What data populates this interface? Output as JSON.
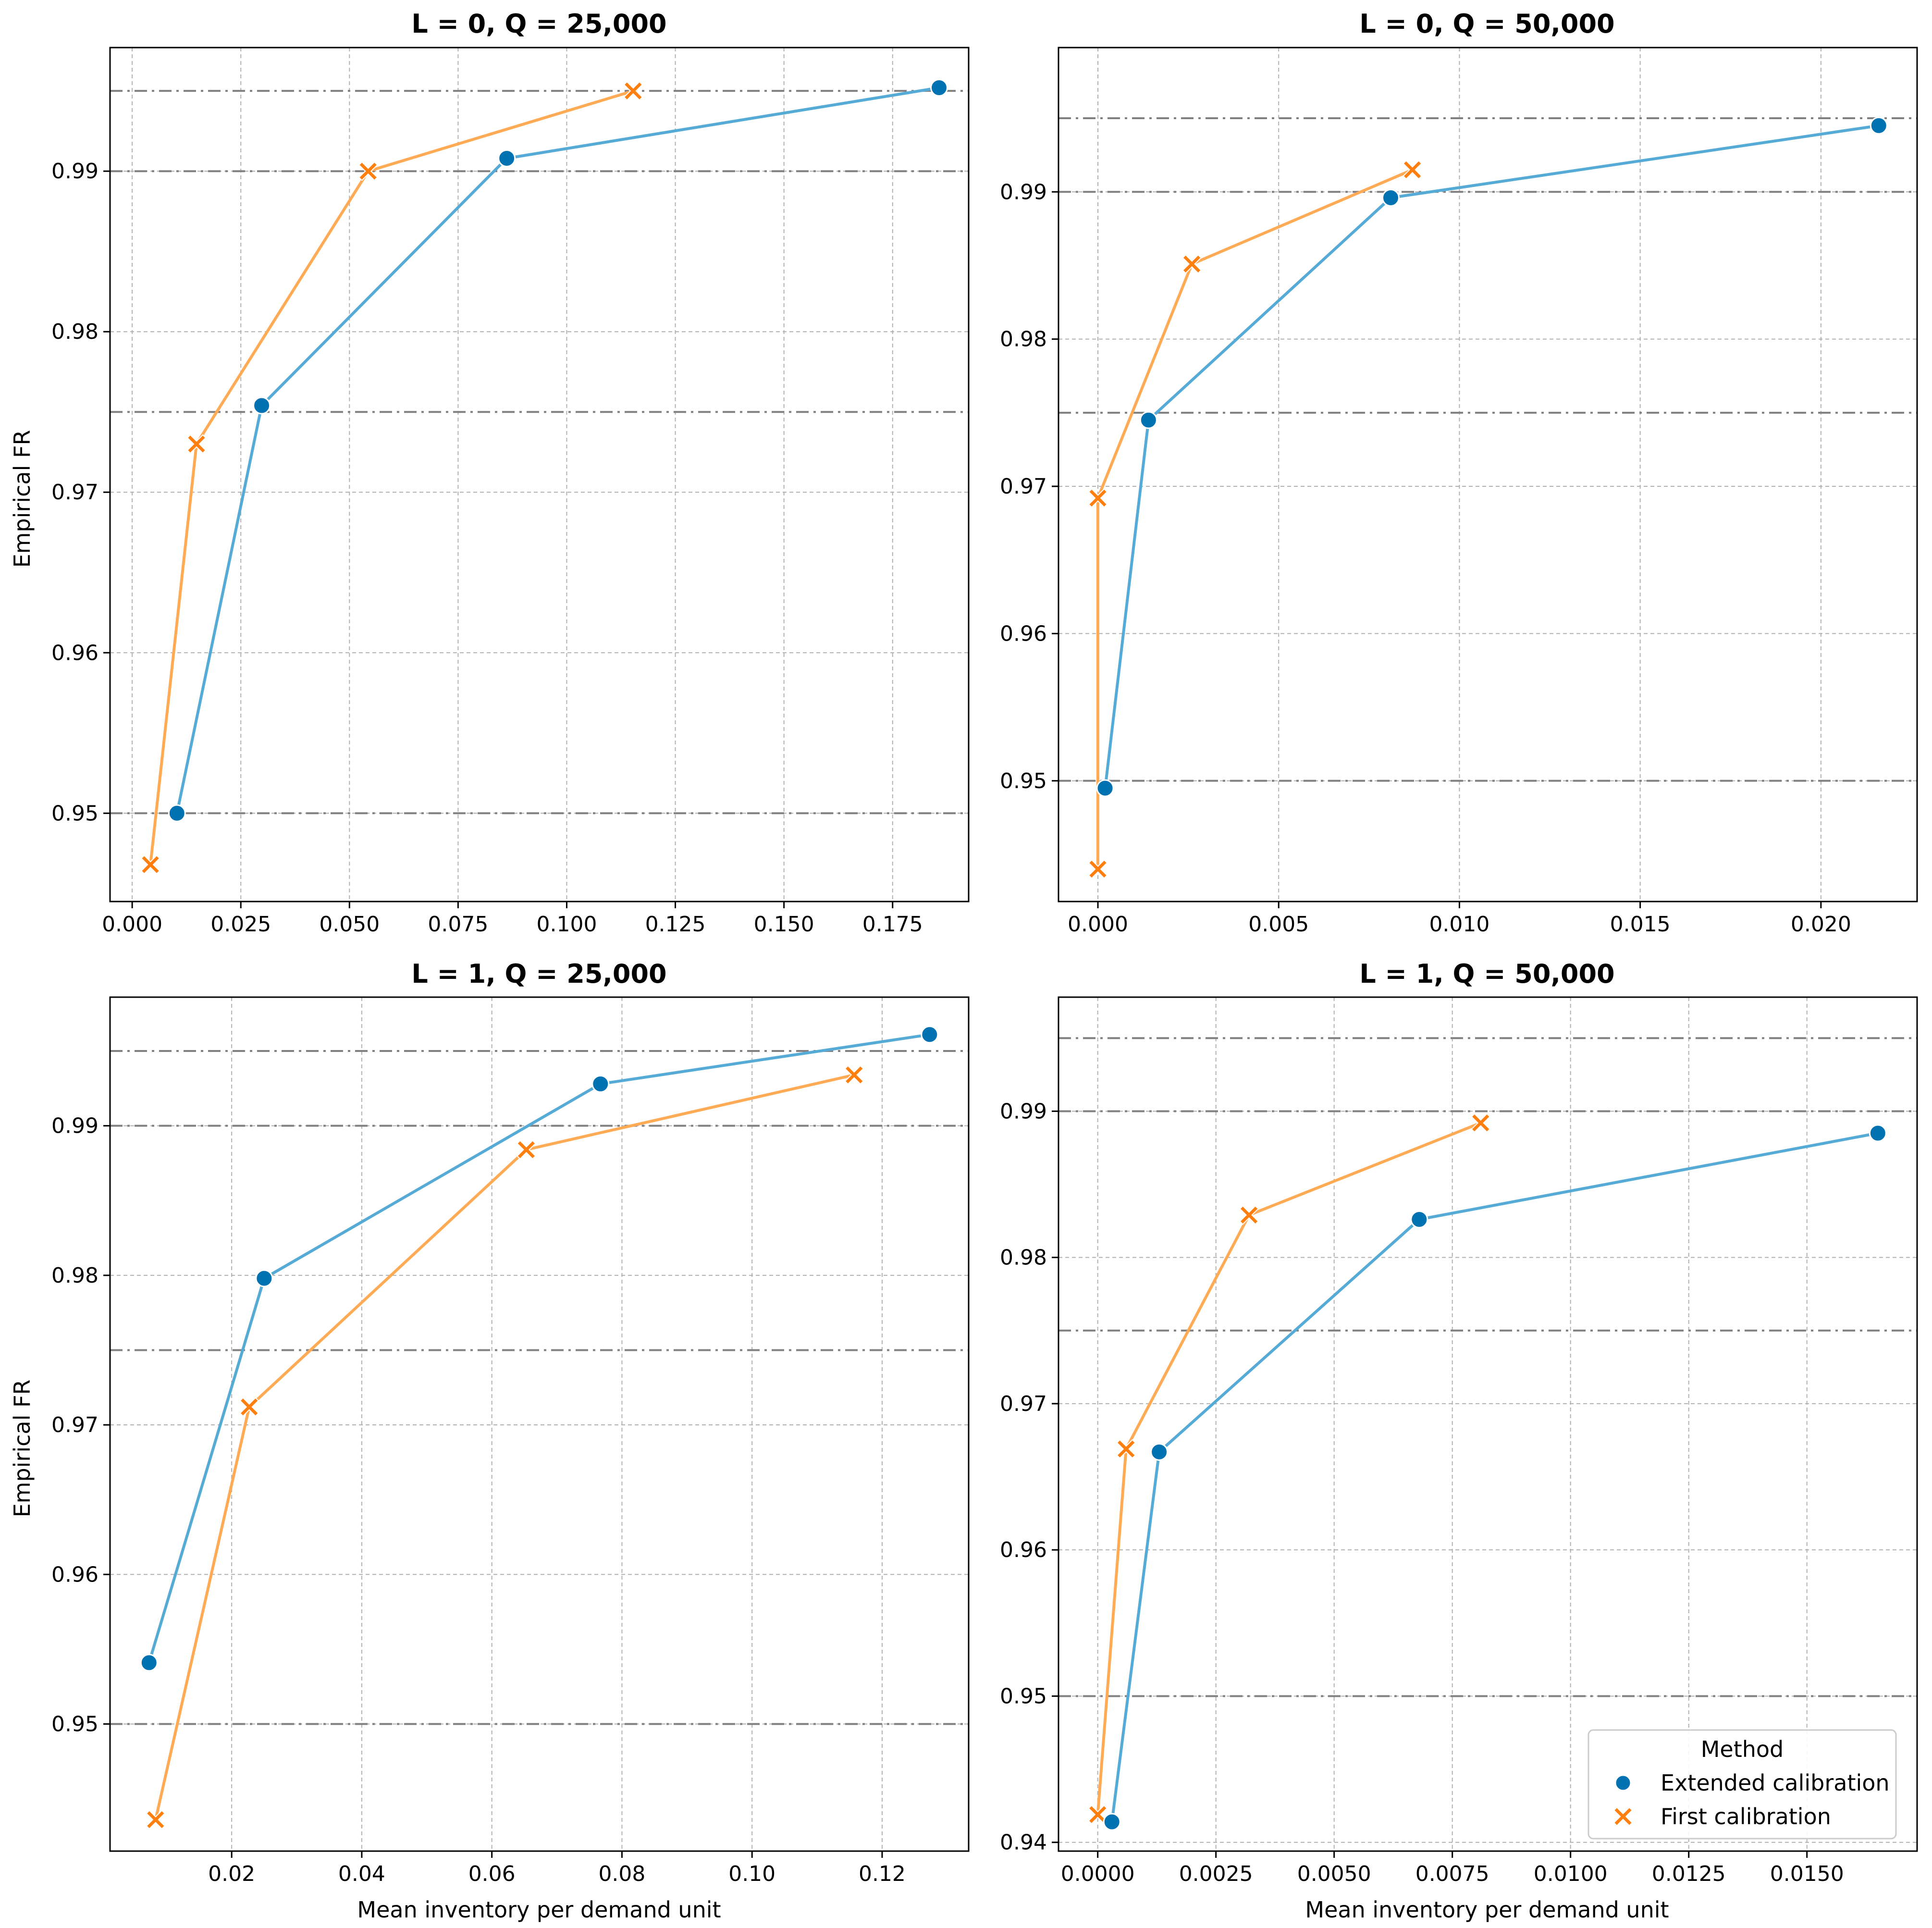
{
  "figure": {
    "legend": {
      "title": "Method",
      "entries": [
        {
          "label": "Extended calibration",
          "color": "#0072B2",
          "marker": "circle"
        },
        {
          "label": "First calibration",
          "color": "#FF7F0E",
          "marker": "x"
        }
      ]
    },
    "line_colors": {
      "extended": "#56ABD6",
      "first": "#FFAA55"
    },
    "reference_line_color": "#808080"
  },
  "chart_data": [
    {
      "type": "line",
      "title": "L = 0, Q = 25,000",
      "xlabel": "",
      "ylabel": "Empirical FR",
      "xlim": [
        -0.0051,
        0.1925
      ],
      "ylim": [
        0.9445,
        0.9977
      ],
      "xticks": [
        "0.000",
        "0.025",
        "0.050",
        "0.075",
        "0.100",
        "0.125",
        "0.150",
        "0.175"
      ],
      "yticks": [
        "0.95",
        "0.96",
        "0.97",
        "0.98",
        "0.99"
      ],
      "reference_lines": [
        0.95,
        0.975,
        0.99,
        0.995
      ],
      "grid": true,
      "series": [
        {
          "name": "Extended calibration",
          "x": [
            0.0103,
            0.0298,
            0.0862,
            0.1857
          ],
          "y": [
            0.95,
            0.9754,
            0.9908,
            0.9952
          ]
        },
        {
          "name": "First calibration",
          "x": [
            0.0042,
            0.0148,
            0.0543,
            0.1153
          ],
          "y": [
            0.9468,
            0.973,
            0.99,
            0.995
          ]
        }
      ]
    },
    {
      "type": "line",
      "title": "L = 0, Q = 50,000",
      "xlabel": "",
      "ylabel": "",
      "xlim": [
        -0.00109,
        0.02266
      ],
      "ylim": [
        0.9418,
        0.9998
      ],
      "xticks": [
        "0.000",
        "0.005",
        "0.010",
        "0.015",
        "0.020"
      ],
      "yticks": [
        "0.95",
        "0.96",
        "0.97",
        "0.98",
        "0.99"
      ],
      "reference_lines": [
        0.95,
        0.975,
        0.99,
        0.995
      ],
      "grid": true,
      "series": [
        {
          "name": "Extended calibration",
          "x": [
            0.0002,
            0.0014,
            0.0081,
            0.0216
          ],
          "y": [
            0.9495,
            0.9745,
            0.9896,
            0.9945
          ]
        },
        {
          "name": "First calibration",
          "x": [
            0.0,
            0.0,
            0.0026,
            0.0087
          ],
          "y": [
            0.944,
            0.9692,
            0.9851,
            0.9915
          ]
        }
      ]
    },
    {
      "type": "line",
      "title": "L = 1, Q = 25,000",
      "xlabel": "Mean inventory per demand unit",
      "ylabel": "Empirical FR",
      "xlim": [
        0.0013,
        0.1333
      ],
      "ylim": [
        0.9415,
        0.9986
      ],
      "xticks": [
        "0.02",
        "0.04",
        "0.06",
        "0.08",
        "0.10",
        "0.12"
      ],
      "yticks": [
        "0.95",
        "0.96",
        "0.97",
        "0.98",
        "0.99"
      ],
      "reference_lines": [
        0.95,
        0.975,
        0.99,
        0.995
      ],
      "grid": true,
      "series": [
        {
          "name": "Extended calibration",
          "x": [
            0.0073,
            0.025,
            0.0767,
            0.1273
          ],
          "y": [
            0.9541,
            0.9798,
            0.9928,
            0.9961
          ]
        },
        {
          "name": "First calibration",
          "x": [
            0.0083,
            0.0227,
            0.0653,
            0.1157
          ],
          "y": [
            0.9436,
            0.9712,
            0.9884,
            0.9934
          ]
        }
      ]
    },
    {
      "type": "line",
      "title": "L = 1, Q = 50,000",
      "xlabel": "Mean inventory per demand unit",
      "ylabel": "",
      "xlim": [
        -0.00083,
        0.01733
      ],
      "ylim": [
        0.9394,
        0.9978
      ],
      "xticks": [
        "0.0000",
        "0.0025",
        "0.0050",
        "0.0075",
        "0.0100",
        "0.0125",
        "0.0150"
      ],
      "yticks": [
        "0.94",
        "0.95",
        "0.96",
        "0.97",
        "0.98",
        "0.99"
      ],
      "reference_lines": [
        0.95,
        0.975,
        0.99,
        0.995
      ],
      "grid": true,
      "legend": "lower right",
      "series": [
        {
          "name": "Extended calibration",
          "x": [
            0.0003,
            0.0013,
            0.0068,
            0.0165
          ],
          "y": [
            0.9414,
            0.9667,
            0.9826,
            0.9885
          ]
        },
        {
          "name": "First calibration",
          "x": [
            0.0,
            0.0006,
            0.0032,
            0.0081
          ],
          "y": [
            0.9419,
            0.9669,
            0.9829,
            0.9892
          ]
        }
      ]
    }
  ]
}
